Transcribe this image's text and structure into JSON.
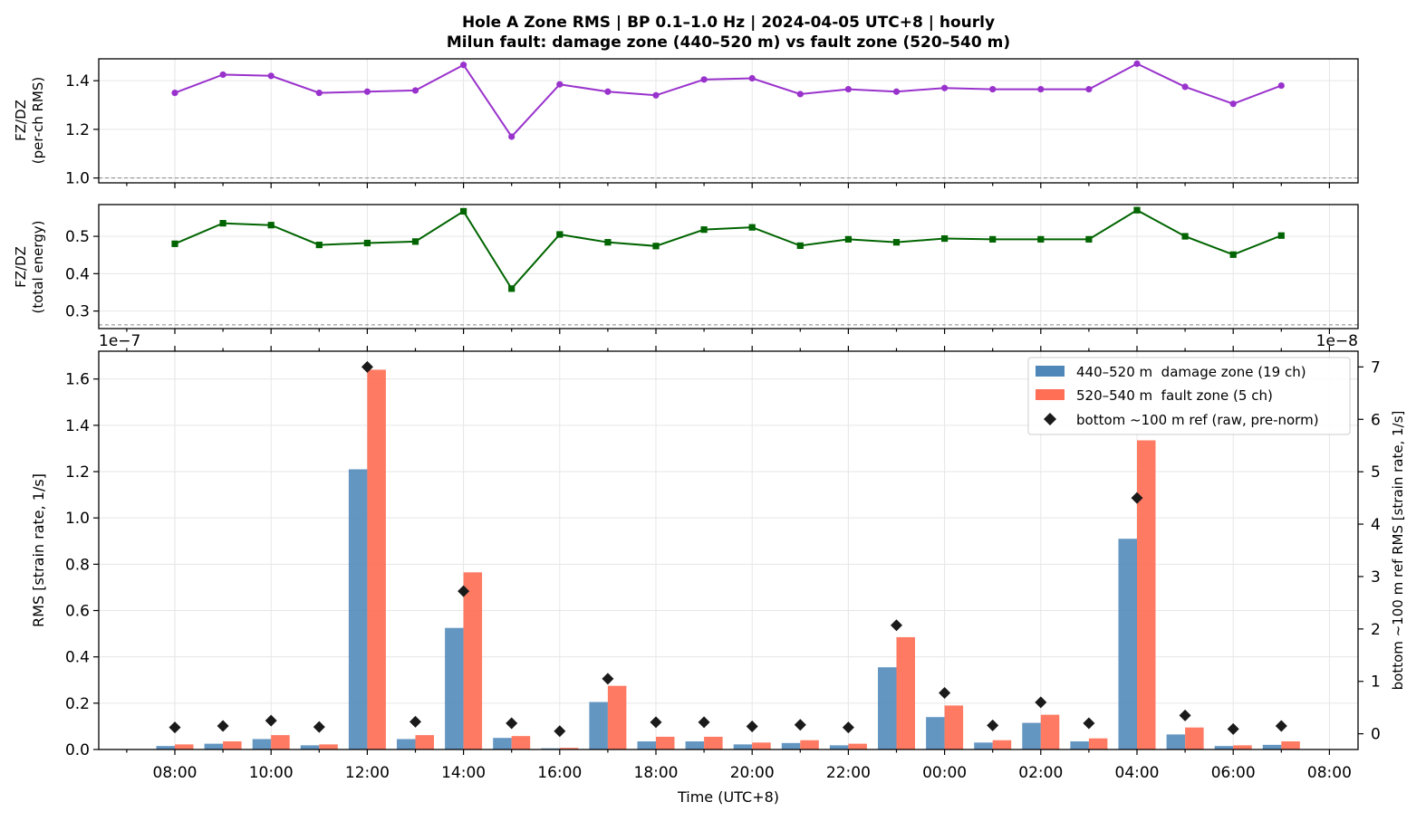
{
  "chart_data": [
    {
      "type": "line",
      "title": "Hole A Zone RMS  |  BP 0.1–1.0 Hz  |  2024-04-05 UTC+8  |  hourly",
      "subtitle": "Milun fault: damage zone (440–520 m) vs fault zone (520–540 m)",
      "ylabel": "FZ/DZ",
      "ylabel2": "(per-ch RMS)",
      "ylim": [
        0.98,
        1.49
      ],
      "yticks": [
        "1.0",
        "1.2",
        "1.4"
      ],
      "reference_line": 1.0,
      "color": "#9932cc",
      "grid": true,
      "x": [
        "08:00",
        "09:00",
        "10:00",
        "11:00",
        "12:00",
        "13:00",
        "14:00",
        "15:00",
        "16:00",
        "17:00",
        "18:00",
        "19:00",
        "20:00",
        "21:00",
        "22:00",
        "23:00",
        "00:00",
        "01:00",
        "02:00",
        "03:00",
        "04:00",
        "05:00",
        "06:00",
        "07:00"
      ],
      "values": [
        1.35,
        1.425,
        1.42,
        1.35,
        1.355,
        1.36,
        1.465,
        1.17,
        1.385,
        1.355,
        1.34,
        1.405,
        1.41,
        1.345,
        1.365,
        1.355,
        1.37,
        1.365,
        1.365,
        1.365,
        1.47,
        1.375,
        1.305,
        1.38
      ]
    },
    {
      "type": "line",
      "ylabel": "FZ/DZ",
      "ylabel2": "(total energy)",
      "ylim": [
        0.253,
        0.585
      ],
      "yticks": [
        "0.3",
        "0.4",
        "0.5"
      ],
      "reference_line": 0.263,
      "color": "#006400",
      "grid": true,
      "x": [
        "08:00",
        "09:00",
        "10:00",
        "11:00",
        "12:00",
        "13:00",
        "14:00",
        "15:00",
        "16:00",
        "17:00",
        "18:00",
        "19:00",
        "20:00",
        "21:00",
        "22:00",
        "23:00",
        "00:00",
        "01:00",
        "02:00",
        "03:00",
        "04:00",
        "05:00",
        "06:00",
        "07:00"
      ],
      "values": [
        0.48,
        0.535,
        0.53,
        0.477,
        0.482,
        0.486,
        0.567,
        0.36,
        0.505,
        0.484,
        0.474,
        0.518,
        0.524,
        0.475,
        0.492,
        0.484,
        0.494,
        0.492,
        0.492,
        0.492,
        0.57,
        0.5,
        0.451,
        0.502
      ]
    },
    {
      "type": "bar",
      "xlabel": "Time (UTC+8)",
      "ylabel": "RMS  [strain rate, 1/s]",
      "ylabel_right": "bottom ~100 m ref RMS  [strain rate, 1/s]",
      "offset_left": "1e−7",
      "offset_right": "1e−8",
      "ylim": [
        0,
        1.72
      ],
      "ylim_right": [
        -0.3,
        7.3
      ],
      "yticks": [
        "0.0",
        "0.2",
        "0.4",
        "0.6",
        "0.8",
        "1.0",
        "1.2",
        "1.4",
        "1.6"
      ],
      "yticks_right": [
        "0",
        "1",
        "2",
        "3",
        "4",
        "5",
        "6",
        "7"
      ],
      "xticks": [
        "08:00",
        "10:00",
        "12:00",
        "14:00",
        "16:00",
        "18:00",
        "20:00",
        "22:00",
        "00:00",
        "02:00",
        "04:00",
        "06:00",
        "08:00"
      ],
      "legend_position": "upper right",
      "grid": true,
      "x": [
        "08:00",
        "09:00",
        "10:00",
        "11:00",
        "12:00",
        "13:00",
        "14:00",
        "15:00",
        "16:00",
        "17:00",
        "18:00",
        "19:00",
        "20:00",
        "21:00",
        "22:00",
        "23:00",
        "00:00",
        "01:00",
        "02:00",
        "03:00",
        "04:00",
        "05:00",
        "06:00",
        "07:00"
      ],
      "series": [
        {
          "name": "440–520 m  damage zone (19 ch)",
          "color": "#4f87b9",
          "axis": "left",
          "values": [
            0.015,
            0.025,
            0.045,
            0.018,
            1.21,
            0.045,
            0.525,
            0.05,
            0.005,
            0.205,
            0.035,
            0.035,
            0.022,
            0.028,
            0.018,
            0.355,
            0.14,
            0.03,
            0.115,
            0.035,
            0.91,
            0.065,
            0.015,
            0.02
          ]
        },
        {
          "name": "520–540 m  fault zone (5 ch)",
          "color": "#ff6f55",
          "axis": "left",
          "values": [
            0.022,
            0.035,
            0.062,
            0.022,
            1.64,
            0.062,
            0.765,
            0.058,
            0.007,
            0.275,
            0.055,
            0.055,
            0.03,
            0.04,
            0.025,
            0.485,
            0.19,
            0.04,
            0.15,
            0.048,
            1.335,
            0.095,
            0.018,
            0.035
          ]
        },
        {
          "name": "bottom ~100 m ref (raw, pre-norm)",
          "color": "#1a1a1a",
          "axis": "right",
          "marker": "diamond",
          "values": [
            0.12,
            0.15,
            0.25,
            0.13,
            7.0,
            0.23,
            2.72,
            0.2,
            0.05,
            1.05,
            0.22,
            0.22,
            0.14,
            0.17,
            0.12,
            2.07,
            0.78,
            0.16,
            0.6,
            0.2,
            4.5,
            0.35,
            0.09,
            0.15
          ]
        }
      ]
    }
  ]
}
